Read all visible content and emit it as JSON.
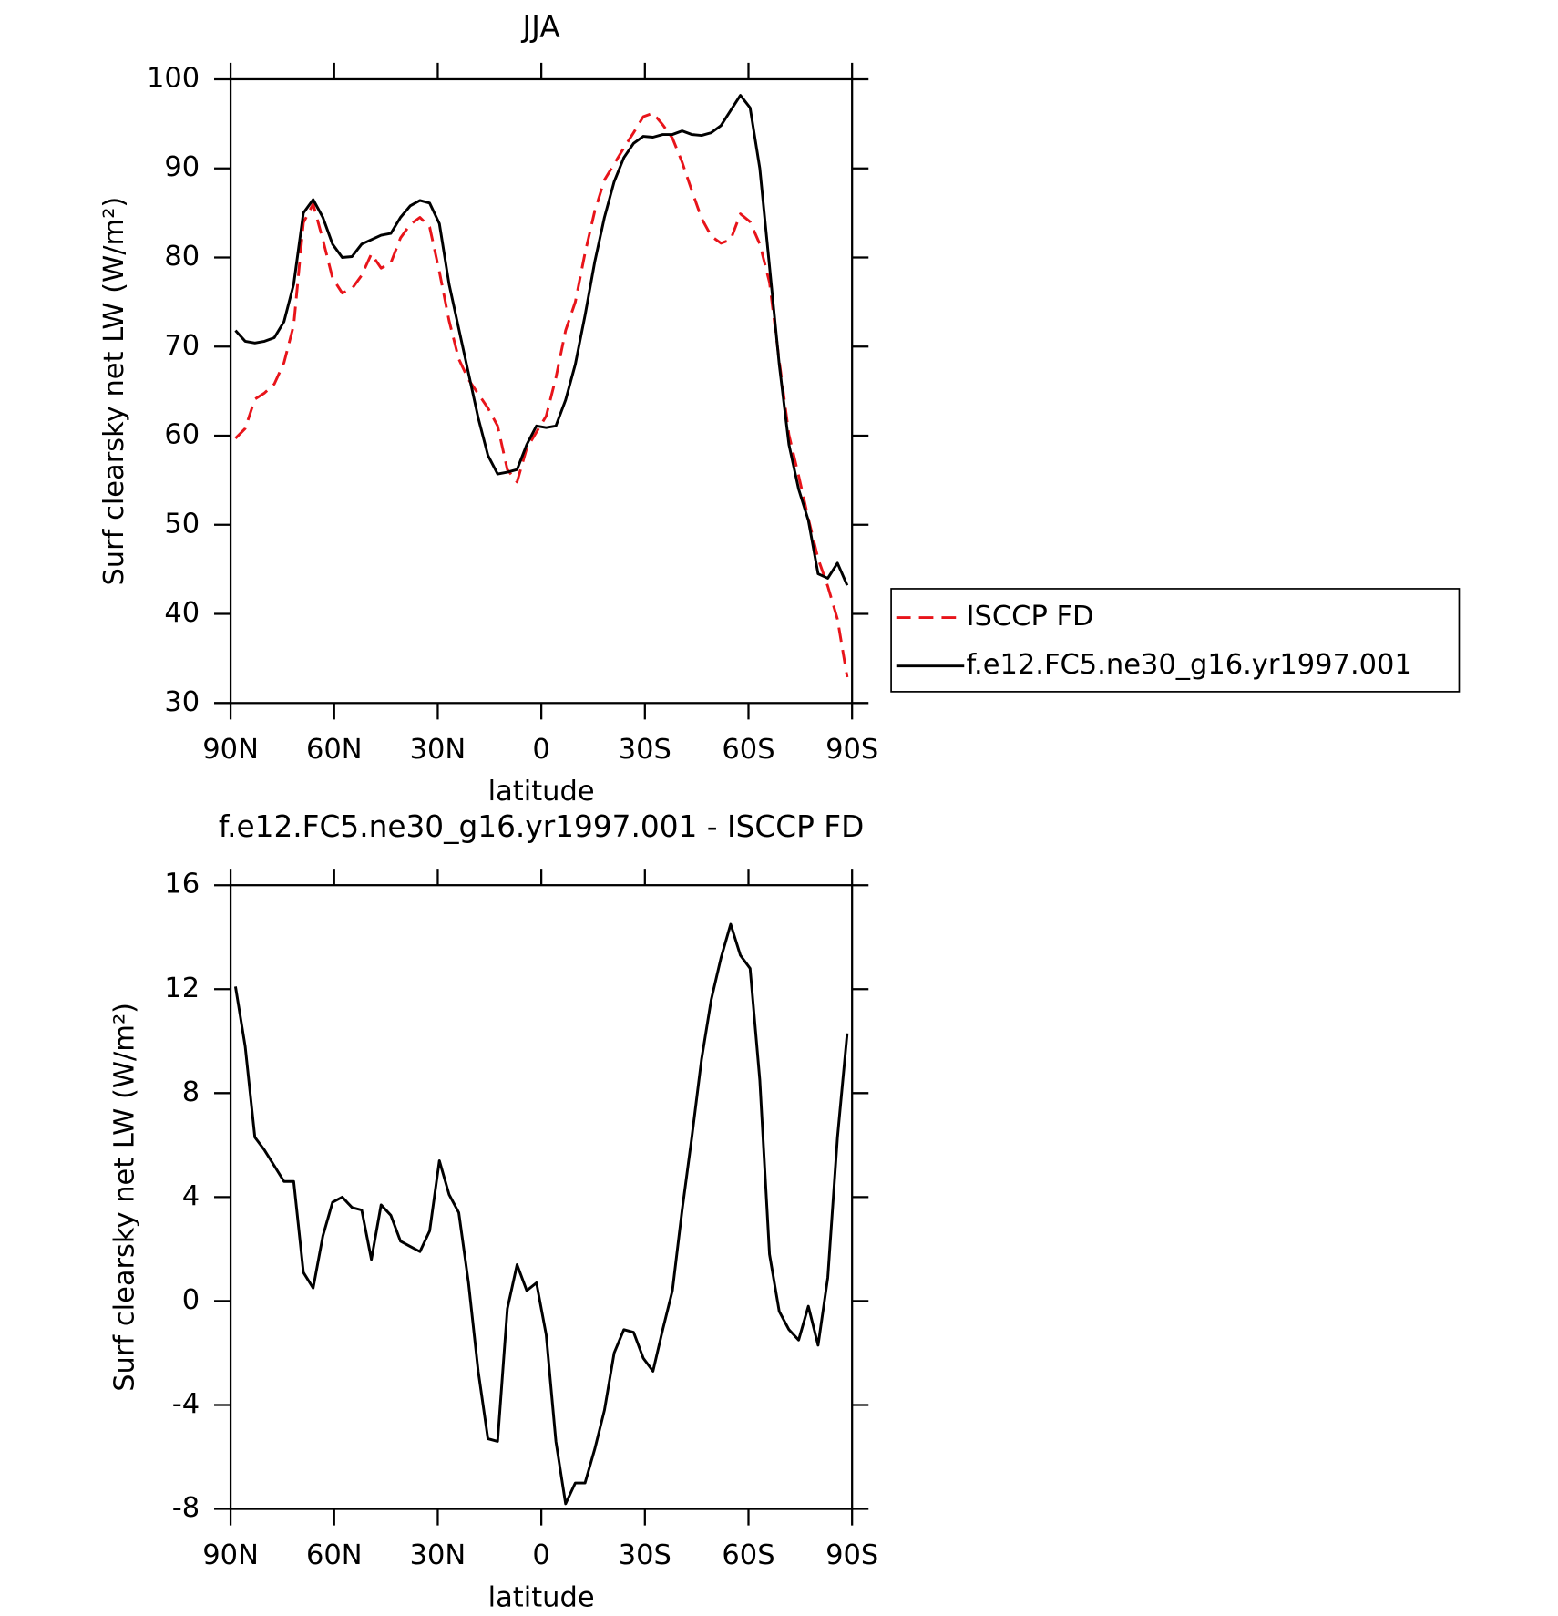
{
  "chart_data": [
    {
      "type": "line",
      "title": "JJA",
      "xlabel": "latitude",
      "ylabel": "Surf clearsky net LW (W/m²)",
      "x": [
        88.59,
        85.78,
        82.97,
        80.16,
        77.34,
        74.53,
        71.72,
        68.91,
        66.09,
        63.28,
        60.47,
        57.66,
        54.84,
        52.03,
        49.22,
        46.41,
        43.59,
        40.78,
        37.97,
        35.16,
        32.34,
        29.53,
        26.72,
        23.91,
        21.09,
        18.28,
        15.47,
        12.66,
        9.84,
        7.03,
        4.22,
        1.41,
        -1.41,
        -4.22,
        -7.03,
        -9.84,
        -12.66,
        -15.47,
        -18.28,
        -21.09,
        -23.91,
        -26.72,
        -29.53,
        -32.34,
        -35.16,
        -37.97,
        -40.78,
        -43.59,
        -46.41,
        -49.22,
        -52.03,
        -54.84,
        -57.66,
        -60.47,
        -63.28,
        -66.09,
        -68.91,
        -71.72,
        -74.53,
        -77.34,
        -80.16,
        -82.97,
        -85.78,
        -88.59
      ],
      "series": [
        {
          "name": "ISCCP FD",
          "color": "#e8141a",
          "linestyle": "dashed",
          "values": [
            59.7,
            60.8,
            64.1,
            64.8,
            65.8,
            68.2,
            72.4,
            83.9,
            86.0,
            82.0,
            77.7,
            76.0,
            76.5,
            78.0,
            80.4,
            78.8,
            79.4,
            82.2,
            83.7,
            84.5,
            83.4,
            78.4,
            72.9,
            68.6,
            66.3,
            64.7,
            63.1,
            61.1,
            56.2,
            54.8,
            58.6,
            60.4,
            62.2,
            66.5,
            71.8,
            75.0,
            80.5,
            85.2,
            88.7,
            90.5,
            92.3,
            94.0,
            95.8,
            96.2,
            94.9,
            93.4,
            90.7,
            87.5,
            84.4,
            82.4,
            81.6,
            82.0,
            84.9,
            84.0,
            81.5,
            77.2,
            68.4,
            60.1,
            55.5,
            50.7,
            46.2,
            43.1,
            39.4,
            32.9
          ]
        },
        {
          "name": "f.e12.FC5.ne30_g16.yr1997.001",
          "color": "#000000",
          "linestyle": "solid",
          "values": [
            71.8,
            70.6,
            70.4,
            70.6,
            71.0,
            72.8,
            77.0,
            85.0,
            86.5,
            84.5,
            81.5,
            80.0,
            80.1,
            81.5,
            82.0,
            82.5,
            82.7,
            84.5,
            85.8,
            86.4,
            86.1,
            83.8,
            77.0,
            72.0,
            67.0,
            62.0,
            57.8,
            55.7,
            55.9,
            56.2,
            59.0,
            61.1,
            60.9,
            61.1,
            64.0,
            68.0,
            73.5,
            79.5,
            84.5,
            88.5,
            91.2,
            92.8,
            93.6,
            93.5,
            93.8,
            93.8,
            94.2,
            93.8,
            93.7,
            94.0,
            94.8,
            96.5,
            98.2,
            96.8,
            90.0,
            79.0,
            68.0,
            59.0,
            54.0,
            50.5,
            44.5,
            44.0,
            45.7,
            43.2
          ]
        }
      ],
      "xlim": [
        90,
        -90
      ],
      "xticks": [
        {
          "value": 90,
          "label": "90N"
        },
        {
          "value": 60,
          "label": "60N"
        },
        {
          "value": 30,
          "label": "30N"
        },
        0,
        {
          "value": -30,
          "label": "30S"
        },
        {
          "value": -60,
          "label": "60S"
        },
        {
          "value": -90,
          "label": "90S"
        }
      ],
      "ylim": [
        30,
        100
      ],
      "yticks": [
        30,
        40,
        50,
        60,
        70,
        80,
        90,
        100
      ],
      "legend": "right"
    },
    {
      "type": "line",
      "title": "f.e12.FC5.ne30_g16.yr1997.001 - ISCCP FD",
      "xlabel": "latitude",
      "ylabel": "Surf clearsky net LW (W/m²)",
      "x": [
        88.59,
        85.78,
        82.97,
        80.16,
        77.34,
        74.53,
        71.72,
        68.91,
        66.09,
        63.28,
        60.47,
        57.66,
        54.84,
        52.03,
        49.22,
        46.41,
        43.59,
        40.78,
        37.97,
        35.16,
        32.34,
        29.53,
        26.72,
        23.91,
        21.09,
        18.28,
        15.47,
        12.66,
        9.84,
        7.03,
        4.22,
        1.41,
        -1.41,
        -4.22,
        -7.03,
        -9.84,
        -12.66,
        -15.47,
        -18.28,
        -21.09,
        -23.91,
        -26.72,
        -29.53,
        -32.34,
        -35.16,
        -37.97,
        -40.78,
        -43.59,
        -46.41,
        -49.22,
        -52.03,
        -54.84,
        -57.66,
        -60.47,
        -63.28,
        -66.09,
        -68.91,
        -71.72,
        -74.53,
        -77.34,
        -80.16,
        -82.97,
        -85.78,
        -88.59
      ],
      "values": [
        12.1,
        9.8,
        6.3,
        5.8,
        5.2,
        4.6,
        4.6,
        1.1,
        0.5,
        2.5,
        3.8,
        4.0,
        3.6,
        3.5,
        1.6,
        3.7,
        3.3,
        2.3,
        2.1,
        1.9,
        2.7,
        5.4,
        4.1,
        3.4,
        0.7,
        -2.7,
        -5.3,
        -5.4,
        -0.3,
        1.4,
        0.4,
        0.7,
        -1.3,
        -5.4,
        -7.8,
        -7.0,
        -7.0,
        -5.7,
        -4.2,
        -2.0,
        -1.1,
        -1.2,
        -2.2,
        -2.7,
        -1.1,
        0.4,
        3.5,
        6.3,
        9.3,
        11.6,
        13.2,
        14.5,
        13.3,
        12.8,
        8.5,
        1.8,
        -0.4,
        -1.1,
        -1.5,
        -0.2,
        -1.7,
        0.9,
        6.3,
        10.3
      ],
      "color": "#000000",
      "xlim": [
        90,
        -90
      ],
      "xticks": [
        {
          "value": 90,
          "label": "90N"
        },
        {
          "value": 60,
          "label": "60N"
        },
        {
          "value": 30,
          "label": "30N"
        },
        0,
        {
          "value": -30,
          "label": "30S"
        },
        {
          "value": -60,
          "label": "60S"
        },
        {
          "value": -90,
          "label": "90S"
        }
      ],
      "ylim": [
        -8,
        16
      ],
      "yticks": [
        -8,
        -4,
        0,
        4,
        8,
        12,
        16
      ]
    }
  ]
}
